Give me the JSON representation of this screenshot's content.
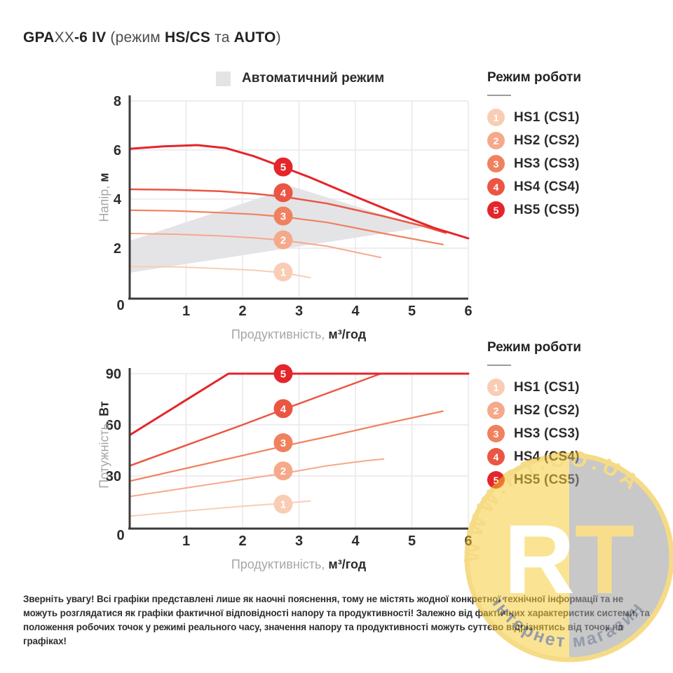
{
  "title": {
    "brand_bold": "GPA",
    "model_light": "XX",
    "model_bold": "-6 IV",
    "paren_open": " (",
    "mode_word": "режим ",
    "mode_bold": "HS/CS",
    "conj": " та ",
    "auto_bold": "AUTO",
    "paren_close": ")"
  },
  "auto_legend": {
    "label": "Автоматичний режим",
    "swatch_color": "#e4e4e7"
  },
  "legend": {
    "title": "Режим роботи",
    "items": [
      {
        "num": "1",
        "label": "HS1 (CS1)",
        "color": "#F9CDB4"
      },
      {
        "num": "2",
        "label": "HS2 (CS2)",
        "color": "#F5A98B"
      },
      {
        "num": "3",
        "label": "HS3 (CS3)",
        "color": "#F0815F"
      },
      {
        "num": "4",
        "label": "HS4 (CS4)",
        "color": "#EA5643"
      },
      {
        "num": "5",
        "label": "HS5 (CS5)",
        "color": "#E4252B"
      }
    ]
  },
  "axis_labels": {
    "x_gray": "Продуктивність, ",
    "x_bold": "м³/год",
    "y1_gray": "Напір, ",
    "y1_bold": "м",
    "y2_gray": "Потужність, ",
    "y2_bold": "Вт"
  },
  "footer": {
    "text": "Зверніть увагу! Всі графіки представлені лише як наочні пояснення, тому не містять жодної конкретної технічної інформації та не можуть розглядатися як графіки фактичної відповідності напору та продуктивності! Залежно від фактичних характеристик системи, та положення робочих точок у режимі реального часу, значення напору та продуктивності можуть суттєво відрізнятись від точок на графіках!"
  },
  "watermark": {
    "site": "WWW.RT.CO.UA",
    "letter_r": "R",
    "letter_t": "T",
    "shop": "інтернет магазин"
  },
  "chart_data": [
    {
      "type": "line",
      "xlabel": "Продуктивність, м³/год",
      "ylabel": "Напір, м",
      "xlim": [
        0,
        6
      ],
      "ylim": [
        0,
        8
      ],
      "xticks": [
        0,
        1,
        2,
        3,
        4,
        5,
        6
      ],
      "yticks": [
        0,
        2,
        4,
        6,
        8
      ],
      "grid": true,
      "auto_region": {
        "label": "Автоматичний режим",
        "color": "#e4e4e7",
        "polygon": [
          [
            0,
            1.0
          ],
          [
            0,
            2.3
          ],
          [
            2.9,
            4.5
          ],
          [
            5.2,
            2.85
          ]
        ]
      },
      "marker_x": 2.72,
      "series": [
        {
          "name": "HS1 (CS1)",
          "color": "#F9CDB4",
          "width": 2,
          "marker_y": 1.03,
          "points": [
            [
              0,
              1.25
            ],
            [
              0.8,
              1.24
            ],
            [
              1.6,
              1.17
            ],
            [
              2.2,
              1.1
            ],
            [
              2.72,
              1.0
            ],
            [
              3.2,
              0.8
            ]
          ]
        },
        {
          "name": "HS2 (CS2)",
          "color": "#F5A98B",
          "width": 2,
          "marker_y": 2.34,
          "points": [
            [
              0,
              2.6
            ],
            [
              0.8,
              2.57
            ],
            [
              1.6,
              2.5
            ],
            [
              2.2,
              2.42
            ],
            [
              2.72,
              2.32
            ],
            [
              3.5,
              2.08
            ],
            [
              4.45,
              1.62
            ]
          ]
        },
        {
          "name": "HS3 (CS3)",
          "color": "#F0815F",
          "width": 2.2,
          "marker_y": 3.31,
          "points": [
            [
              0,
              3.55
            ],
            [
              0.8,
              3.52
            ],
            [
              1.6,
              3.45
            ],
            [
              2.2,
              3.38
            ],
            [
              2.72,
              3.28
            ],
            [
              3.5,
              3.05
            ],
            [
              4.5,
              2.6
            ],
            [
              5.55,
              2.15
            ]
          ]
        },
        {
          "name": "HS4 (CS4)",
          "color": "#EA5643",
          "width": 2.5,
          "marker_y": 4.26,
          "points": [
            [
              0,
              4.4
            ],
            [
              0.8,
              4.38
            ],
            [
              1.6,
              4.32
            ],
            [
              2.2,
              4.22
            ],
            [
              2.72,
              4.1
            ],
            [
              3.5,
              3.82
            ],
            [
              4.5,
              3.3
            ],
            [
              5.2,
              2.9
            ],
            [
              5.6,
              2.62
            ]
          ]
        },
        {
          "name": "HS5 (CS5)",
          "color": "#E4252B",
          "width": 3,
          "marker_y": 5.31,
          "points": [
            [
              0,
              6.05
            ],
            [
              0.6,
              6.15
            ],
            [
              1.2,
              6.2
            ],
            [
              1.7,
              6.08
            ],
            [
              2.2,
              5.75
            ],
            [
              2.72,
              5.3
            ],
            [
              3.2,
              4.88
            ],
            [
              4,
              4.1
            ],
            [
              4.8,
              3.35
            ],
            [
              5.4,
              2.82
            ],
            [
              6,
              2.4
            ]
          ]
        }
      ]
    },
    {
      "type": "line",
      "xlabel": "Продуктивність, м³/год",
      "ylabel": "Потужність, Вт",
      "xlim": [
        0,
        6
      ],
      "ylim": [
        0,
        90
      ],
      "xticks": [
        0,
        1,
        2,
        3,
        4,
        5,
        6
      ],
      "yticks": [
        0,
        30,
        60,
        90
      ],
      "grid": true,
      "marker_x": 2.72,
      "series": [
        {
          "name": "HS1 (CS1)",
          "color": "#F9CDB4",
          "width": 2,
          "marker_y": 13.5,
          "points": [
            [
              0,
              6.5
            ],
            [
              1,
              9.5
            ],
            [
              2,
              12.3
            ],
            [
              2.72,
              14
            ],
            [
              3.2,
              15.3
            ]
          ]
        },
        {
          "name": "HS2 (CS2)",
          "color": "#F5A98B",
          "width": 2,
          "marker_y": 33,
          "points": [
            [
              0,
              18
            ],
            [
              1,
              23
            ],
            [
              2,
              28
            ],
            [
              2.72,
              31.5
            ],
            [
              3.5,
              36
            ],
            [
              4.2,
              39
            ],
            [
              4.5,
              40
            ]
          ]
        },
        {
          "name": "HS3 (CS3)",
          "color": "#F0815F",
          "width": 2.2,
          "marker_y": 49.5,
          "points": [
            [
              0,
              27
            ],
            [
              1,
              34.5
            ],
            [
              2,
              42
            ],
            [
              2.72,
              47.5
            ],
            [
              3.5,
              53
            ],
            [
              4.5,
              60.5
            ],
            [
              5.55,
              68
            ]
          ]
        },
        {
          "name": "HS4 (CS4)",
          "color": "#EA5643",
          "width": 2.5,
          "marker_y": 69.5,
          "points": [
            [
              0,
              36
            ],
            [
              1,
              48
            ],
            [
              2,
              60
            ],
            [
              2.72,
              69
            ],
            [
              3.5,
              78.5
            ],
            [
              4.45,
              90
            ]
          ]
        },
        {
          "name": "HS5 (CS5)",
          "color": "#E4252B",
          "width": 3,
          "marker_y": 90,
          "points": [
            [
              0,
              54
            ],
            [
              1.75,
              90
            ],
            [
              6,
              90
            ]
          ]
        }
      ]
    }
  ]
}
